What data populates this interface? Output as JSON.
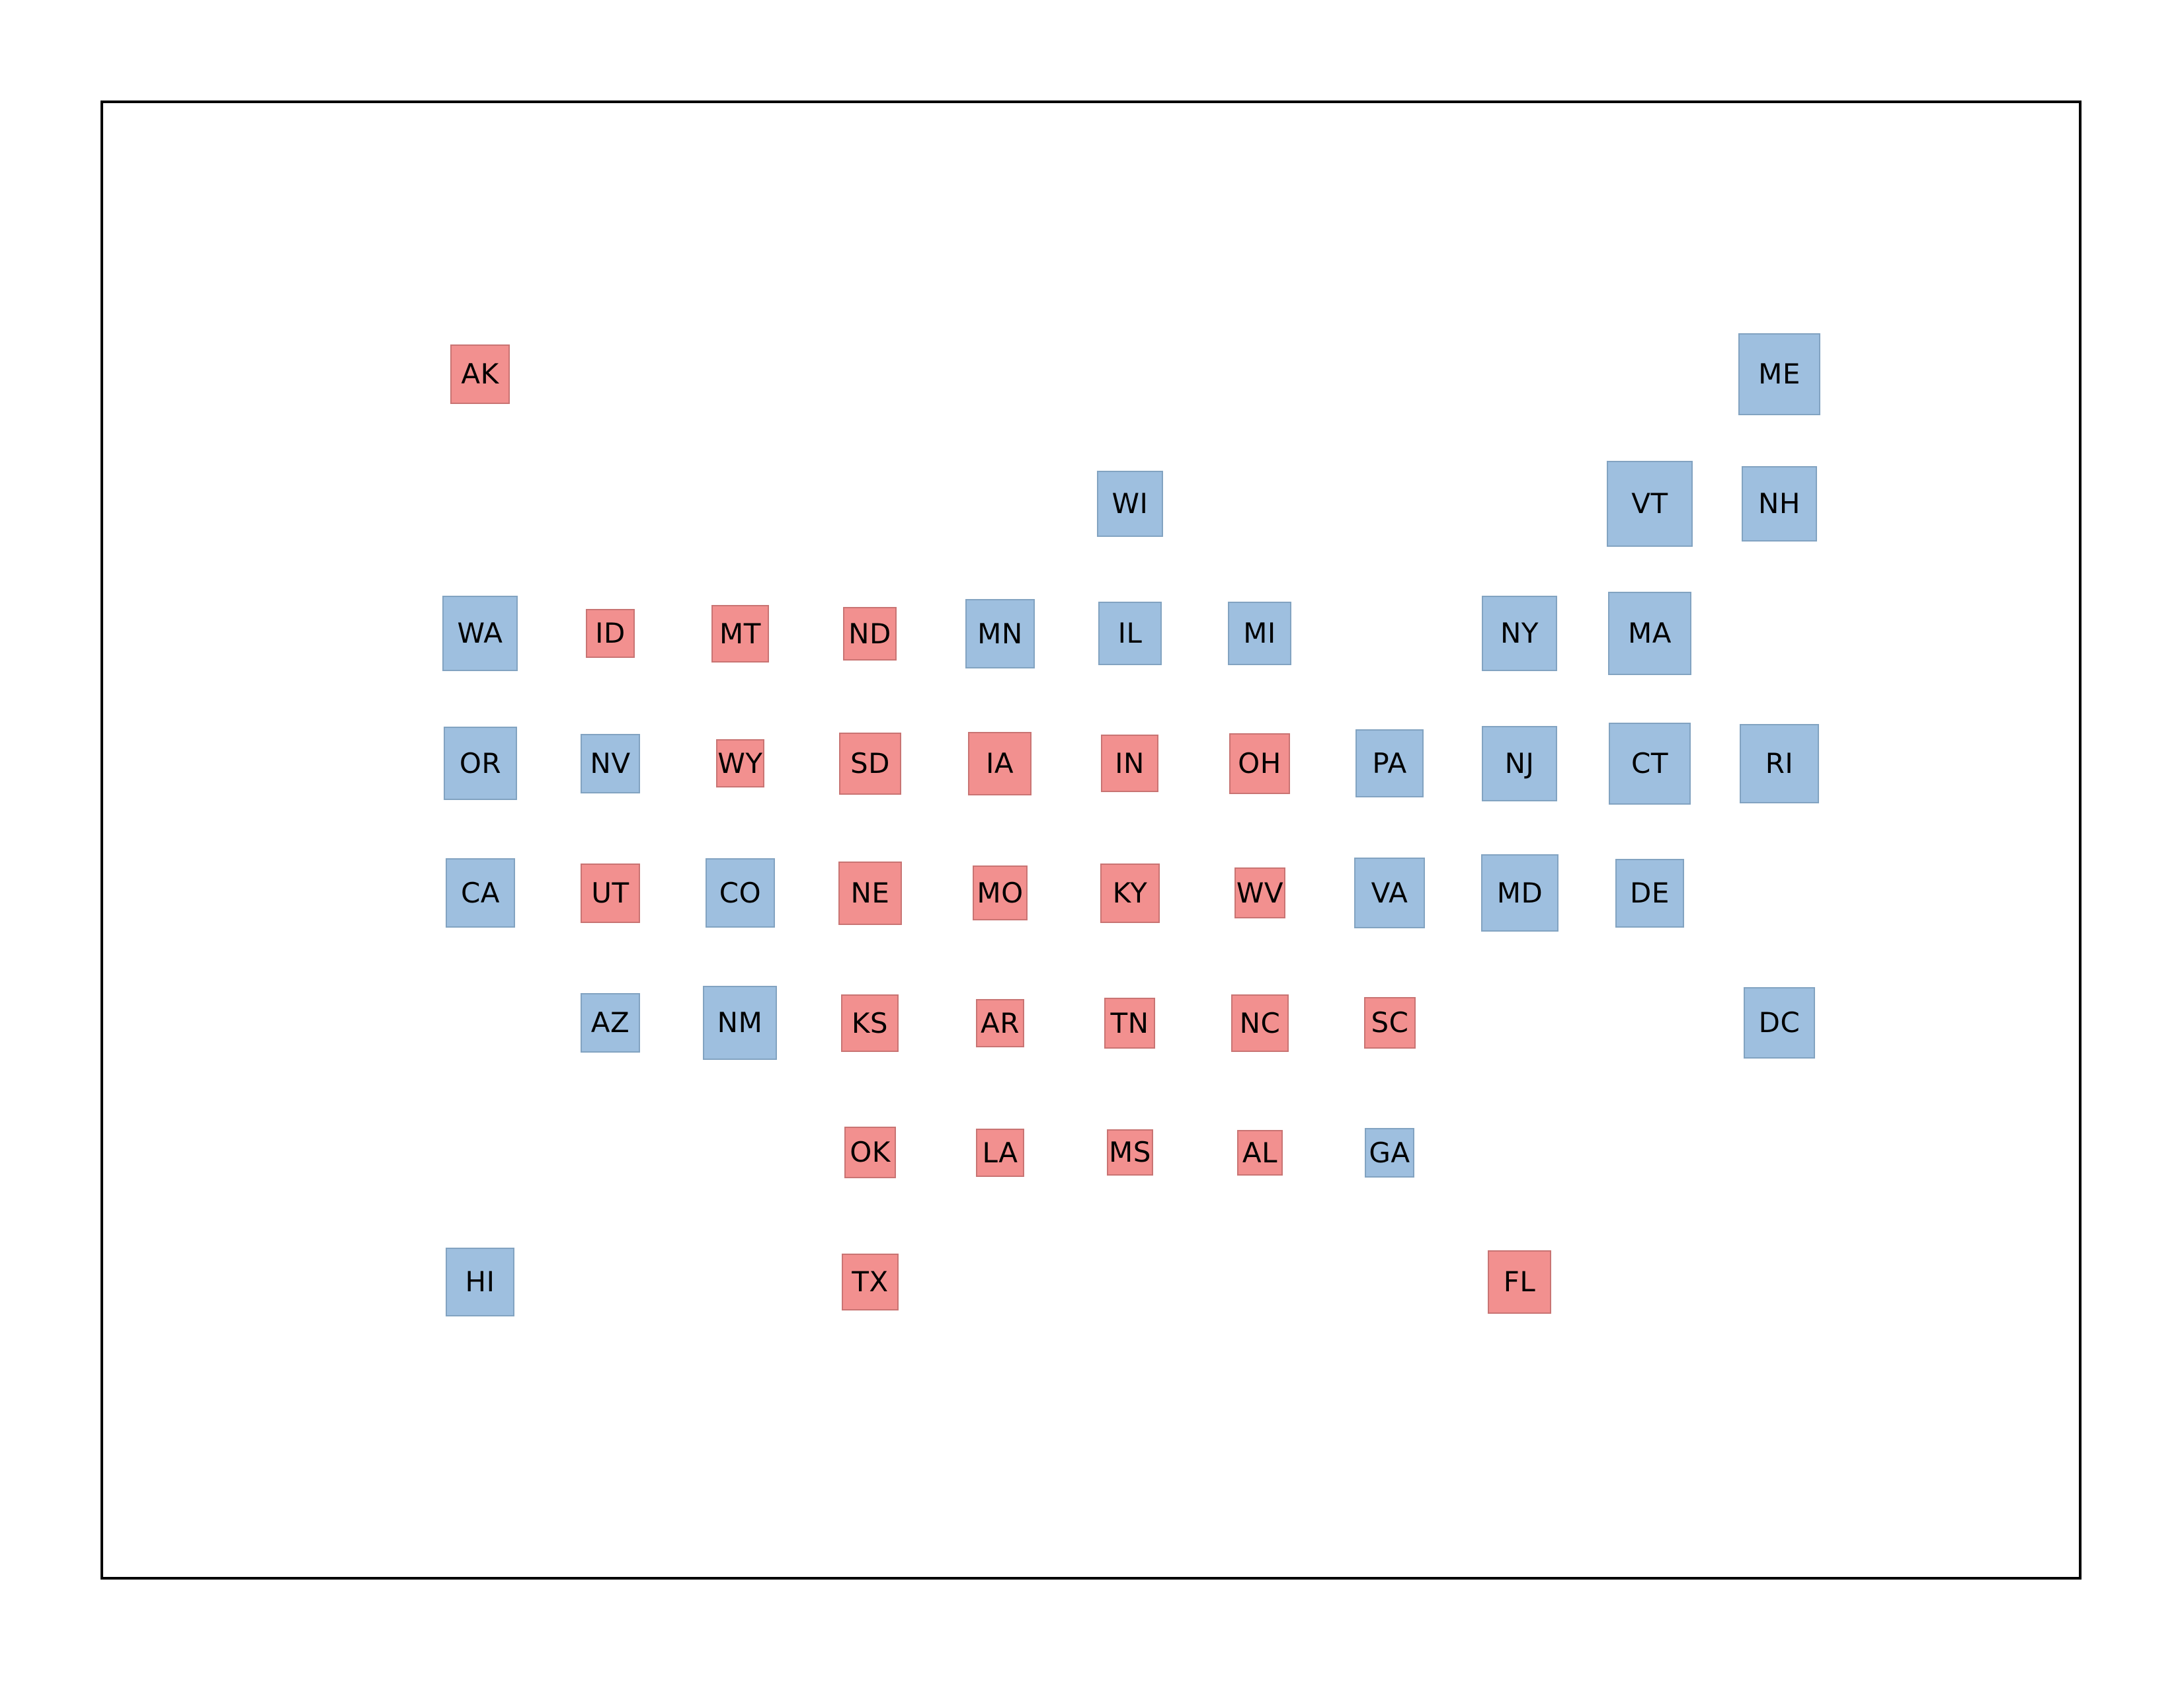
{
  "colors": {
    "blue": "#9ebfdf",
    "blue_border": "#82a3c1",
    "red": "#f2908f",
    "red_border": "#c97473"
  },
  "states": [
    {
      "code": "AK",
      "party": "red",
      "row": 0,
      "col": 0,
      "scale": 0.69
    },
    {
      "code": "ME",
      "party": "blue",
      "row": 0,
      "col": 10,
      "scale": 0.95
    },
    {
      "code": "WI",
      "party": "blue",
      "row": 1,
      "col": 5,
      "scale": 0.77
    },
    {
      "code": "VT",
      "party": "blue",
      "row": 1,
      "col": 9,
      "scale": 1.0
    },
    {
      "code": "NH",
      "party": "blue",
      "row": 1,
      "col": 10,
      "scale": 0.88
    },
    {
      "code": "WA",
      "party": "blue",
      "row": 2,
      "col": 0,
      "scale": 0.88
    },
    {
      "code": "ID",
      "party": "red",
      "row": 2,
      "col": 1,
      "scale": 0.57
    },
    {
      "code": "MT",
      "party": "red",
      "row": 2,
      "col": 2,
      "scale": 0.67
    },
    {
      "code": "ND",
      "party": "red",
      "row": 2,
      "col": 3,
      "scale": 0.62
    },
    {
      "code": "MN",
      "party": "blue",
      "row": 2,
      "col": 4,
      "scale": 0.81
    },
    {
      "code": "IL",
      "party": "blue",
      "row": 2,
      "col": 5,
      "scale": 0.74
    },
    {
      "code": "MI",
      "party": "blue",
      "row": 2,
      "col": 6,
      "scale": 0.74
    },
    {
      "code": "NY",
      "party": "blue",
      "row": 2,
      "col": 8,
      "scale": 0.88
    },
    {
      "code": "MA",
      "party": "blue",
      "row": 2,
      "col": 9,
      "scale": 0.97
    },
    {
      "code": "OR",
      "party": "blue",
      "row": 3,
      "col": 0,
      "scale": 0.85
    },
    {
      "code": "NV",
      "party": "blue",
      "row": 3,
      "col": 1,
      "scale": 0.69
    },
    {
      "code": "WY",
      "party": "red",
      "row": 3,
      "col": 2,
      "scale": 0.56
    },
    {
      "code": "SD",
      "party": "red",
      "row": 3,
      "col": 3,
      "scale": 0.72
    },
    {
      "code": "IA",
      "party": "red",
      "row": 3,
      "col": 4,
      "scale": 0.74
    },
    {
      "code": "IN",
      "party": "red",
      "row": 3,
      "col": 5,
      "scale": 0.67
    },
    {
      "code": "OH",
      "party": "red",
      "row": 3,
      "col": 6,
      "scale": 0.71
    },
    {
      "code": "PA",
      "party": "blue",
      "row": 3,
      "col": 7,
      "scale": 0.79
    },
    {
      "code": "NJ",
      "party": "blue",
      "row": 3,
      "col": 8,
      "scale": 0.88
    },
    {
      "code": "CT",
      "party": "blue",
      "row": 3,
      "col": 9,
      "scale": 0.95
    },
    {
      "code": "RI",
      "party": "blue",
      "row": 3,
      "col": 10,
      "scale": 0.92
    },
    {
      "code": "CA",
      "party": "blue",
      "row": 4,
      "col": 0,
      "scale": 0.81
    },
    {
      "code": "UT",
      "party": "red",
      "row": 4,
      "col": 1,
      "scale": 0.69
    },
    {
      "code": "CO",
      "party": "blue",
      "row": 4,
      "col": 2,
      "scale": 0.81
    },
    {
      "code": "NE",
      "party": "red",
      "row": 4,
      "col": 3,
      "scale": 0.74
    },
    {
      "code": "MO",
      "party": "red",
      "row": 4,
      "col": 4,
      "scale": 0.64
    },
    {
      "code": "KY",
      "party": "red",
      "row": 4,
      "col": 5,
      "scale": 0.69
    },
    {
      "code": "WV",
      "party": "red",
      "row": 4,
      "col": 6,
      "scale": 0.59
    },
    {
      "code": "VA",
      "party": "blue",
      "row": 4,
      "col": 7,
      "scale": 0.82
    },
    {
      "code": "MD",
      "party": "blue",
      "row": 4,
      "col": 8,
      "scale": 0.9
    },
    {
      "code": "DE",
      "party": "blue",
      "row": 4,
      "col": 9,
      "scale": 0.8
    },
    {
      "code": "AZ",
      "party": "blue",
      "row": 5,
      "col": 1,
      "scale": 0.69
    },
    {
      "code": "NM",
      "party": "blue",
      "row": 5,
      "col": 2,
      "scale": 0.86
    },
    {
      "code": "KS",
      "party": "red",
      "row": 5,
      "col": 3,
      "scale": 0.67
    },
    {
      "code": "AR",
      "party": "red",
      "row": 5,
      "col": 4,
      "scale": 0.56
    },
    {
      "code": "TN",
      "party": "red",
      "row": 5,
      "col": 5,
      "scale": 0.59
    },
    {
      "code": "NC",
      "party": "red",
      "row": 5,
      "col": 6,
      "scale": 0.67
    },
    {
      "code": "SC",
      "party": "red",
      "row": 5,
      "col": 7,
      "scale": 0.6
    },
    {
      "code": "DC",
      "party": "blue",
      "row": 5,
      "col": 10,
      "scale": 0.83
    },
    {
      "code": "OK",
      "party": "red",
      "row": 6,
      "col": 3,
      "scale": 0.6
    },
    {
      "code": "LA",
      "party": "red",
      "row": 6,
      "col": 4,
      "scale": 0.56
    },
    {
      "code": "MS",
      "party": "red",
      "row": 6,
      "col": 5,
      "scale": 0.54
    },
    {
      "code": "AL",
      "party": "red",
      "row": 6,
      "col": 6,
      "scale": 0.53
    },
    {
      "code": "GA",
      "party": "blue",
      "row": 6,
      "col": 7,
      "scale": 0.58
    },
    {
      "code": "HI",
      "party": "blue",
      "row": 7,
      "col": 0,
      "scale": 0.8
    },
    {
      "code": "TX",
      "party": "red",
      "row": 7,
      "col": 3,
      "scale": 0.66
    },
    {
      "code": "FL",
      "party": "red",
      "row": 7,
      "col": 8,
      "scale": 0.74
    }
  ]
}
